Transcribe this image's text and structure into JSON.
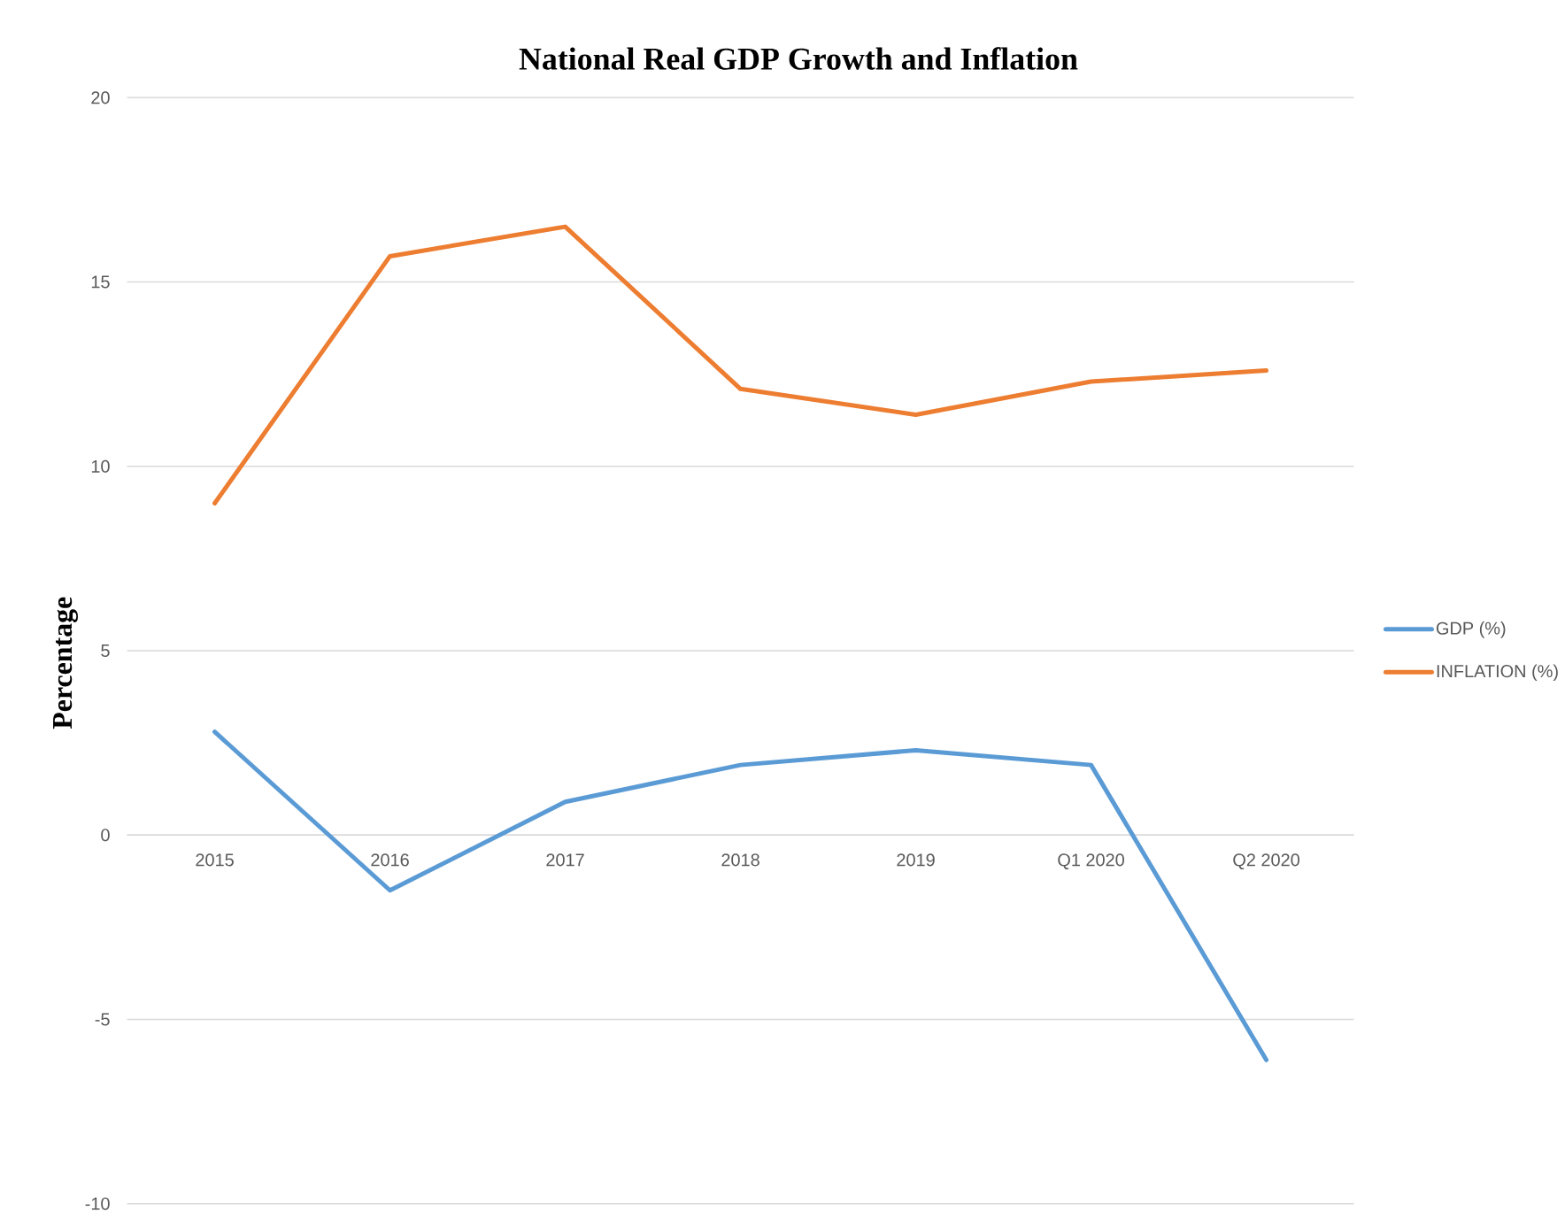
{
  "chart_data": {
    "type": "line",
    "title": "National Real GDP Growth and Inflation",
    "ylabel": "Percentage",
    "categories": [
      "2015",
      "2016",
      "2017",
      "2018",
      "2019",
      "Q1 2020",
      "Q2 2020"
    ],
    "series": [
      {
        "name": "GDP (%)",
        "color": "#5b9bd5",
        "values": [
          2.8,
          -1.5,
          0.9,
          1.9,
          2.3,
          1.9,
          -6.1
        ]
      },
      {
        "name": "INFLATION (%)",
        "color": "#ed7d31",
        "values": [
          9.0,
          15.7,
          16.5,
          12.1,
          11.4,
          12.3,
          12.6
        ]
      }
    ],
    "ylim": [
      -10,
      20
    ],
    "yticks": [
      -10,
      -5,
      0,
      5,
      10,
      15,
      20
    ],
    "grid": "y",
    "legend": "right",
    "marker": "none",
    "line_style": "solid"
  }
}
